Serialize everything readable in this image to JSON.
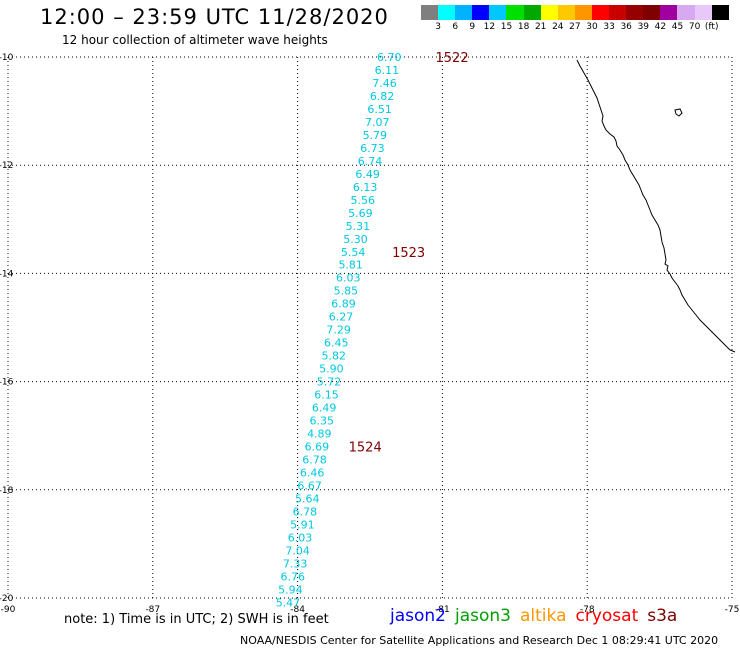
{
  "title": "12:00 – 23:59 UTC 11/28/2020",
  "subtitle": "12 hour collection of altimeter wave heights",
  "colorbar": {
    "colors": [
      "#7f7f7f",
      "#00ffff",
      "#00b2ff",
      "#0000ff",
      "#00c8ff",
      "#00e000",
      "#00a800",
      "#ffff00",
      "#ffc800",
      "#ff9600",
      "#ff0000",
      "#c80000",
      "#960000",
      "#7f0000",
      "#a000a0",
      "#d8a8f0",
      "#e8c8f8",
      "#000000"
    ],
    "labels": [
      "3",
      "6",
      "9",
      "12",
      "15",
      "18",
      "21",
      "24",
      "27",
      "30",
      "33",
      "36",
      "39",
      "42",
      "45",
      "70",
      "(ft)"
    ]
  },
  "map": {
    "lat_labels": [
      "-10",
      "-12",
      "-14",
      "-16",
      "-18",
      "-20"
    ],
    "lon_labels": [
      "-90",
      "-87",
      "-84",
      "-81",
      "-78",
      "-75"
    ],
    "lon_range": [
      -90,
      -75
    ],
    "lat_range": [
      -20,
      -10
    ],
    "grid": "dotted",
    "track_color": "#00c8e0",
    "wave_heights": [
      {
        "value": "6.70",
        "lon": -82.1,
        "lat": -10.0
      },
      {
        "value": "6.11",
        "lon": -82.15,
        "lat": -10.24
      },
      {
        "value": "7.46",
        "lon": -82.2,
        "lat": -10.48
      },
      {
        "value": "6.82",
        "lon": -82.25,
        "lat": -10.72
      },
      {
        "value": "6.51",
        "lon": -82.3,
        "lat": -10.96
      },
      {
        "value": "7.07",
        "lon": -82.35,
        "lat": -11.2
      },
      {
        "value": "5.79",
        "lon": -82.4,
        "lat": -11.44
      },
      {
        "value": "6.73",
        "lon": -82.45,
        "lat": -11.68
      },
      {
        "value": "6.74",
        "lon": -82.5,
        "lat": -11.92
      },
      {
        "value": "6.49",
        "lon": -82.55,
        "lat": -12.16
      },
      {
        "value": "6.13",
        "lon": -82.6,
        "lat": -12.4
      },
      {
        "value": "5.56",
        "lon": -82.65,
        "lat": -12.64
      },
      {
        "value": "5.69",
        "lon": -82.7,
        "lat": -12.88
      },
      {
        "value": "5.31",
        "lon": -82.75,
        "lat": -13.12
      },
      {
        "value": "5.30",
        "lon": -82.8,
        "lat": -13.36
      },
      {
        "value": "5.54",
        "lon": -82.85,
        "lat": -13.6
      },
      {
        "value": "5.81",
        "lon": -82.9,
        "lat": -13.84
      },
      {
        "value": "6.03",
        "lon": -82.95,
        "lat": -14.08
      },
      {
        "value": "5.85",
        "lon": -83.0,
        "lat": -14.32
      },
      {
        "value": "6.89",
        "lon": -83.05,
        "lat": -14.56
      },
      {
        "value": "6.27",
        "lon": -83.1,
        "lat": -14.8
      },
      {
        "value": "7.29",
        "lon": -83.15,
        "lat": -15.04
      },
      {
        "value": "6.45",
        "lon": -83.2,
        "lat": -15.28
      },
      {
        "value": "5.82",
        "lon": -83.25,
        "lat": -15.52
      },
      {
        "value": "5.90",
        "lon": -83.3,
        "lat": -15.76
      },
      {
        "value": "5.72",
        "lon": -83.35,
        "lat": -16.0
      },
      {
        "value": "6.15",
        "lon": -83.4,
        "lat": -16.24
      },
      {
        "value": "6.49",
        "lon": -83.45,
        "lat": -16.48
      },
      {
        "value": "6.35",
        "lon": -83.5,
        "lat": -16.72
      },
      {
        "value": "4.89",
        "lon": -83.55,
        "lat": -16.96
      },
      {
        "value": "6.69",
        "lon": -83.6,
        "lat": -17.2
      },
      {
        "value": "6.78",
        "lon": -83.65,
        "lat": -17.44
      },
      {
        "value": "6.46",
        "lon": -83.7,
        "lat": -17.68
      },
      {
        "value": "6.67",
        "lon": -83.75,
        "lat": -17.92
      },
      {
        "value": "5.64",
        "lon": -83.8,
        "lat": -18.16
      },
      {
        "value": "6.78",
        "lon": -83.85,
        "lat": -18.4
      },
      {
        "value": "5.91",
        "lon": -83.9,
        "lat": -18.64
      },
      {
        "value": "6.03",
        "lon": -83.95,
        "lat": -18.88
      },
      {
        "value": "7.04",
        "lon": -84.0,
        "lat": -19.12
      },
      {
        "value": "7.33",
        "lon": -84.05,
        "lat": -19.36
      },
      {
        "value": "6.76",
        "lon": -84.1,
        "lat": -19.6
      },
      {
        "value": "5.94",
        "lon": -84.15,
        "lat": -19.84
      },
      {
        "value": "5.47",
        "lon": -84.2,
        "lat": -20.08
      }
    ],
    "time_labels": [
      {
        "value": "1522",
        "lon": -80.8,
        "lat": -10.0
      },
      {
        "value": "1523",
        "lon": -81.7,
        "lat": -13.6
      },
      {
        "value": "1524",
        "lon": -82.6,
        "lat": -17.2
      }
    ]
  },
  "note": "note:  1) Time is in UTC;  2) SWH is in feet",
  "legend": [
    {
      "name": "jason2",
      "color": "#0000ff"
    },
    {
      "name": "jason3",
      "color": "#00a000"
    },
    {
      "name": "altika",
      "color": "#ff9600"
    },
    {
      "name": "cryosat",
      "color": "#ff0000"
    },
    {
      "name": "s3a",
      "color": "#7f0000"
    }
  ],
  "footer": "NOAA/NESDIS Center for Satellite Applications and Research    Dec  1 08:29:41 UTC 2020"
}
